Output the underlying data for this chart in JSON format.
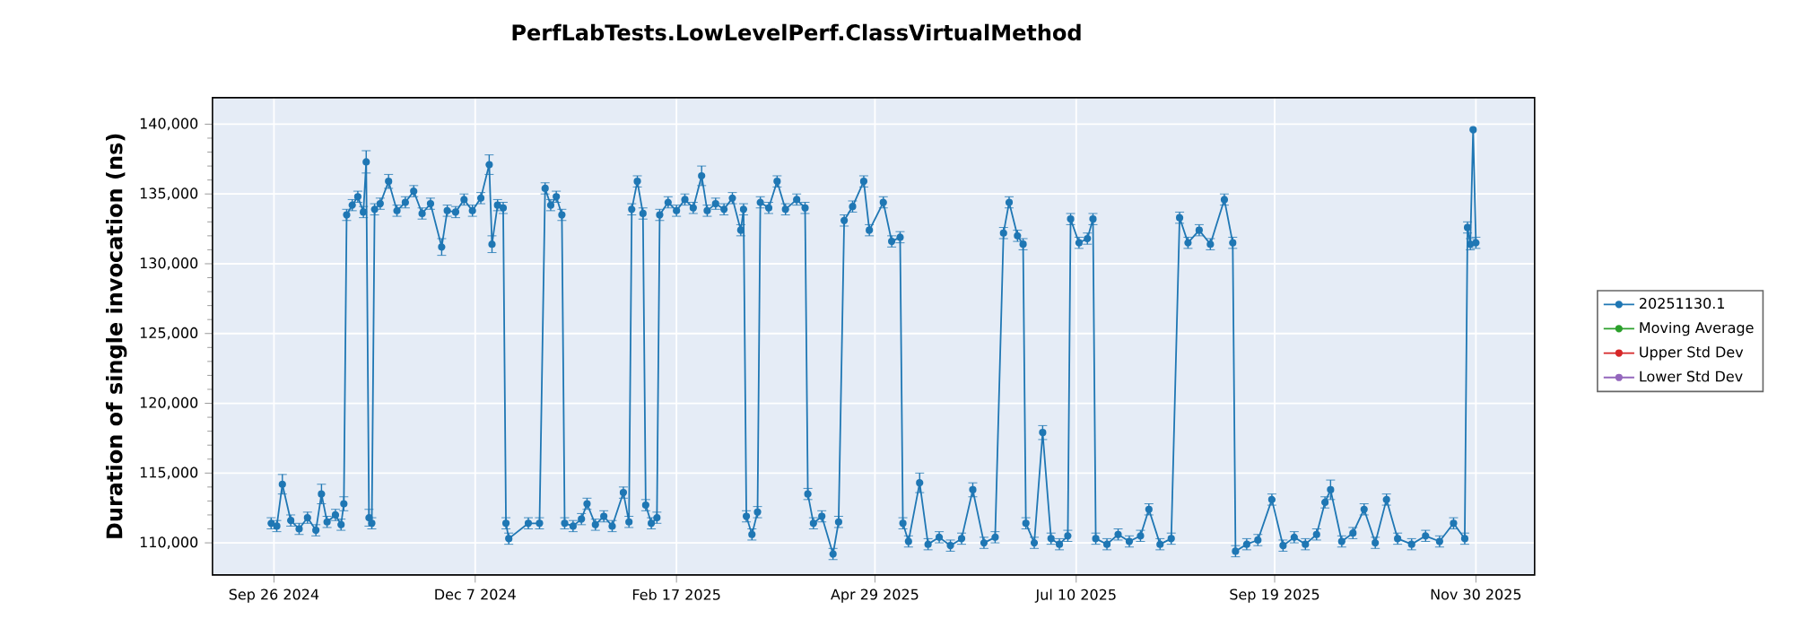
{
  "chart_data": {
    "type": "line",
    "title": "PerfLabTests.LowLevelPerf.ClassVirtualMethod",
    "ylabel": "Duration of single invocation (ns)",
    "x": [
      "2024-09-25",
      "2024-09-27",
      "2024-09-29",
      "2024-10-02",
      "2024-10-05",
      "2024-10-08",
      "2024-10-11",
      "2024-10-13",
      "2024-10-15",
      "2024-10-18",
      "2024-10-20",
      "2024-10-21",
      "2024-10-22",
      "2024-10-24",
      "2024-10-26",
      "2024-10-28",
      "2024-10-29",
      "2024-10-30",
      "2024-10-31",
      "2024-11-01",
      "2024-11-03",
      "2024-11-06",
      "2024-11-09",
      "2024-11-12",
      "2024-11-15",
      "2024-11-18",
      "2024-11-21",
      "2024-11-25",
      "2024-11-27",
      "2024-11-30",
      "2024-12-03",
      "2024-12-06",
      "2024-12-09",
      "2024-12-12",
      "2024-12-13",
      "2024-12-15",
      "2024-12-17",
      "2024-12-18",
      "2024-12-19",
      "2024-12-26",
      "2024-12-30",
      "2025-01-01",
      "2025-01-03",
      "2025-01-05",
      "2025-01-07",
      "2025-01-08",
      "2025-01-11",
      "2025-01-14",
      "2025-01-16",
      "2025-01-19",
      "2025-01-22",
      "2025-01-25",
      "2025-01-29",
      "2025-01-31",
      "2025-02-01",
      "2025-02-03",
      "2025-02-05",
      "2025-02-06",
      "2025-02-08",
      "2025-02-10",
      "2025-02-11",
      "2025-02-14",
      "2025-02-17",
      "2025-02-20",
      "2025-02-23",
      "2025-02-26",
      "2025-02-28",
      "2025-03-03",
      "2025-03-06",
      "2025-03-09",
      "2025-03-12",
      "2025-03-13",
      "2025-03-14",
      "2025-03-16",
      "2025-03-18",
      "2025-03-19",
      "2025-03-22",
      "2025-03-25",
      "2025-03-28",
      "2025-04-01",
      "2025-04-04",
      "2025-04-05",
      "2025-04-07",
      "2025-04-10",
      "2025-04-14",
      "2025-04-16",
      "2025-04-18",
      "2025-04-21",
      "2025-04-25",
      "2025-04-27",
      "2025-05-02",
      "2025-05-05",
      "2025-05-08",
      "2025-05-09",
      "2025-05-11",
      "2025-05-15",
      "2025-05-18",
      "2025-05-22",
      "2025-05-26",
      "2025-05-30",
      "2025-06-03",
      "2025-06-07",
      "2025-06-11",
      "2025-06-14",
      "2025-06-16",
      "2025-06-19",
      "2025-06-21",
      "2025-06-22",
      "2025-06-25",
      "2025-06-28",
      "2025-07-01",
      "2025-07-04",
      "2025-07-07",
      "2025-07-08",
      "2025-07-11",
      "2025-07-14",
      "2025-07-16",
      "2025-07-17",
      "2025-07-21",
      "2025-07-25",
      "2025-07-29",
      "2025-08-02",
      "2025-08-05",
      "2025-08-09",
      "2025-08-13",
      "2025-08-16",
      "2025-08-19",
      "2025-08-23",
      "2025-08-27",
      "2025-09-01",
      "2025-09-04",
      "2025-09-05",
      "2025-09-09",
      "2025-09-13",
      "2025-09-18",
      "2025-09-22",
      "2025-09-26",
      "2025-09-30",
      "2025-10-04",
      "2025-10-07",
      "2025-10-09",
      "2025-10-13",
      "2025-10-17",
      "2025-10-21",
      "2025-10-25",
      "2025-10-29",
      "2025-11-02",
      "2025-11-07",
      "2025-11-12",
      "2025-11-17",
      "2025-11-22",
      "2025-11-26",
      "2025-11-27",
      "2025-11-28",
      "2025-11-29",
      "2025-11-30"
    ],
    "series": [
      {
        "name": "20251130.1",
        "color": "#1f77b4",
        "values": [
          111400,
          111200,
          114200,
          111600,
          111000,
          111800,
          110900,
          113500,
          111500,
          112000,
          111300,
          112800,
          133500,
          134200,
          134800,
          133700,
          137300,
          111800,
          111400,
          133900,
          134300,
          135900,
          133800,
          134400,
          135200,
          133600,
          134300,
          131200,
          133800,
          133700,
          134600,
          133800,
          134700,
          137100,
          131400,
          134200,
          134000,
          111400,
          110300,
          111400,
          111400,
          135400,
          134200,
          134800,
          133500,
          111400,
          111200,
          111700,
          112800,
          111300,
          111900,
          111200,
          113600,
          111500,
          133900,
          135900,
          133600,
          112700,
          111400,
          111800,
          133500,
          134400,
          133800,
          134600,
          134000,
          136300,
          133800,
          134300,
          133900,
          134700,
          132400,
          133900,
          111900,
          110600,
          112200,
          134400,
          134000,
          135900,
          133900,
          134600,
          134000,
          113500,
          111400,
          111900,
          109200,
          111500,
          133100,
          134100,
          135900,
          132400,
          134400,
          131600,
          131900,
          111400,
          110100,
          114300,
          109900,
          110400,
          109800,
          110300,
          113800,
          110000,
          110400,
          132200,
          134400,
          132000,
          131400,
          111400,
          110000,
          117900,
          110300,
          109900,
          110500,
          133200,
          131500,
          131800,
          133200,
          110300,
          109900,
          110600,
          110100,
          110500,
          112400,
          109900,
          110300,
          133300,
          131500,
          132400,
          131400,
          134600,
          131500,
          109400,
          109900,
          110200,
          113100,
          109800,
          110400,
          109900,
          110600,
          112900,
          113800,
          110100,
          110700,
          112400,
          110000,
          113100,
          110300,
          109900,
          110500,
          110100,
          111400,
          110300,
          132600,
          131400,
          139600,
          131500
        ],
        "errors": [
          400,
          400,
          700,
          400,
          400,
          400,
          400,
          700,
          400,
          400,
          400,
          500,
          400,
          400,
          400,
          400,
          800,
          600,
          400,
          400,
          400,
          500,
          400,
          400,
          400,
          400,
          400,
          600,
          400,
          400,
          400,
          400,
          400,
          700,
          600,
          400,
          400,
          400,
          400,
          400,
          400,
          400,
          400,
          400,
          400,
          400,
          400,
          400,
          400,
          400,
          400,
          400,
          400,
          400,
          400,
          400,
          400,
          400,
          400,
          400,
          400,
          400,
          400,
          400,
          400,
          700,
          400,
          400,
          400,
          400,
          400,
          400,
          400,
          400,
          400,
          400,
          400,
          400,
          400,
          400,
          400,
          400,
          400,
          400,
          400,
          400,
          400,
          400,
          400,
          400,
          400,
          400,
          400,
          400,
          400,
          700,
          400,
          400,
          400,
          400,
          500,
          400,
          400,
          400,
          400,
          400,
          400,
          400,
          400,
          500,
          400,
          400,
          400,
          400,
          400,
          400,
          400,
          400,
          400,
          400,
          400,
          400,
          400,
          400,
          400,
          400,
          400,
          400,
          400,
          400,
          400,
          400,
          400,
          400,
          400,
          400,
          400,
          400,
          400,
          400,
          700,
          400,
          400,
          400,
          400,
          400,
          400,
          400,
          400,
          400,
          400,
          400,
          400,
          400,
          null,
          400
        ]
      },
      {
        "name": "Moving Average",
        "color": "#2ca02c",
        "values": [
          null,
          null,
          null,
          null,
          null,
          null,
          null,
          null,
          null,
          null,
          null,
          null,
          null,
          null,
          null,
          null,
          null,
          null,
          null,
          null,
          null,
          null,
          null,
          null,
          null,
          null,
          null,
          null,
          null,
          null,
          null,
          null,
          null,
          null,
          null,
          null,
          null,
          null,
          null,
          null,
          null,
          null,
          null,
          null,
          null,
          null,
          null,
          null,
          null,
          null,
          null,
          null,
          null,
          null,
          null,
          null,
          null,
          null,
          null,
          null,
          null,
          null,
          null,
          null,
          null,
          null,
          null,
          null,
          null,
          null,
          null,
          null,
          null,
          null,
          null,
          null,
          null,
          null,
          null,
          null,
          null,
          null,
          null,
          null,
          null,
          null,
          null,
          null,
          null,
          null,
          null,
          null,
          null,
          null,
          null,
          null,
          null,
          null,
          null,
          null,
          null,
          null,
          null,
          null,
          null,
          null,
          null,
          null,
          null,
          null,
          null,
          null,
          null,
          null,
          null,
          null,
          null,
          null,
          null,
          null,
          null,
          null,
          null,
          null,
          null,
          null,
          null,
          null,
          null,
          null,
          null,
          null,
          null,
          null,
          null,
          null,
          null,
          null,
          null,
          null,
          null,
          null,
          null,
          null,
          null,
          null,
          null,
          null,
          null,
          null,
          null,
          null,
          null,
          null,
          null,
          null
        ]
      },
      {
        "name": "Upper Std Dev",
        "color": "#d62728",
        "values": [
          null,
          null,
          null,
          null,
          null,
          null,
          null,
          null,
          null,
          null,
          null,
          null,
          null,
          null,
          null,
          null,
          null,
          null,
          null,
          null,
          null,
          null,
          null,
          null,
          null,
          null,
          null,
          null,
          null,
          null,
          null,
          null,
          null,
          null,
          null,
          null,
          null,
          null,
          null,
          null,
          null,
          null,
          null,
          null,
          null,
          null,
          null,
          null,
          null,
          null,
          null,
          null,
          null,
          null,
          null,
          null,
          null,
          null,
          null,
          null,
          null,
          null,
          null,
          null,
          null,
          null,
          null,
          null,
          null,
          null,
          null,
          null,
          null,
          null,
          null,
          null,
          null,
          null,
          null,
          null,
          null,
          null,
          null,
          null,
          null,
          null,
          null,
          null,
          null,
          null,
          null,
          null,
          null,
          null,
          null,
          null,
          null,
          null,
          null,
          null,
          null,
          null,
          null,
          null,
          null,
          null,
          null,
          null,
          null,
          null,
          null,
          null,
          null,
          null,
          null,
          null,
          null,
          null,
          null,
          null,
          null,
          null,
          null,
          null,
          null,
          null,
          null,
          null,
          null,
          null,
          null,
          null,
          null,
          null,
          null,
          null,
          null,
          null,
          null,
          null,
          null,
          null,
          null,
          null,
          null,
          null,
          null,
          null,
          null,
          null,
          null,
          null,
          null,
          null,
          null,
          null
        ]
      },
      {
        "name": "Lower Std Dev",
        "color": "#9467bd",
        "values": [
          null,
          null,
          null,
          null,
          null,
          null,
          null,
          null,
          null,
          null,
          null,
          null,
          null,
          null,
          null,
          null,
          null,
          null,
          null,
          null,
          null,
          null,
          null,
          null,
          null,
          null,
          null,
          null,
          null,
          null,
          null,
          null,
          null,
          null,
          null,
          null,
          null,
          null,
          null,
          null,
          null,
          null,
          null,
          null,
          null,
          null,
          null,
          null,
          null,
          null,
          null,
          null,
          null,
          null,
          null,
          null,
          null,
          null,
          null,
          null,
          null,
          null,
          null,
          null,
          null,
          null,
          null,
          null,
          null,
          null,
          null,
          null,
          null,
          null,
          null,
          null,
          null,
          null,
          null,
          null,
          null,
          null,
          null,
          null,
          null,
          null,
          null,
          null,
          null,
          null,
          null,
          null,
          null,
          null,
          null,
          null,
          null,
          null,
          null,
          null,
          null,
          null,
          null,
          null,
          null,
          null,
          null,
          null,
          null,
          null,
          null,
          null,
          null,
          null,
          null,
          null,
          null,
          null,
          null,
          null,
          null,
          null,
          null,
          null,
          null,
          null,
          null,
          null,
          null,
          null,
          null,
          null,
          null,
          null,
          null,
          null,
          null,
          null,
          null,
          null,
          null,
          null,
          null,
          null,
          null,
          null,
          null,
          null,
          null,
          null,
          null,
          null,
          null,
          null,
          null,
          null
        ]
      }
    ],
    "xlim": [
      "2024-09-04",
      "2025-12-21"
    ],
    "ylim": [
      107700,
      141900
    ],
    "xticks": [
      {
        "value": "2024-09-26",
        "label": "Sep 26 2024"
      },
      {
        "value": "2024-12-07",
        "label": "Dec 7 2024"
      },
      {
        "value": "2025-02-17",
        "label": "Feb 17 2025"
      },
      {
        "value": "2025-04-29",
        "label": "Apr 29 2025"
      },
      {
        "value": "2025-07-10",
        "label": "Jul 10 2025"
      },
      {
        "value": "2025-09-19",
        "label": "Sep 19 2025"
      },
      {
        "value": "2025-11-30",
        "label": "Nov 30 2025"
      }
    ],
    "yticks": [
      {
        "value": 110000,
        "label": "110,000"
      },
      {
        "value": 115000,
        "label": "115,000"
      },
      {
        "value": 120000,
        "label": "120,000"
      },
      {
        "value": 125000,
        "label": "125,000"
      },
      {
        "value": 130000,
        "label": "130,000"
      },
      {
        "value": 135000,
        "label": "135,000"
      },
      {
        "value": 140000,
        "label": "140,000"
      }
    ],
    "grid": true,
    "legend": "right",
    "marker": "circle",
    "line_style": "solid"
  }
}
